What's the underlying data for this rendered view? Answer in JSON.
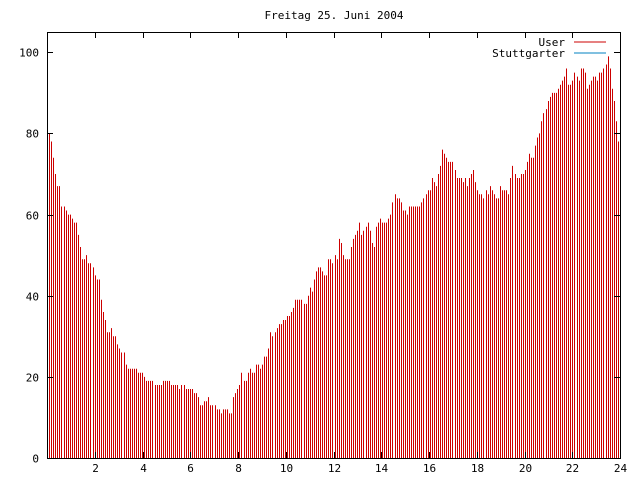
{
  "chart_data": {
    "type": "bar",
    "title": "Freitag 25. Juni 2004",
    "xlabel": "",
    "ylabel": "",
    "xlim": [
      0,
      24
    ],
    "ylim": [
      0,
      105
    ],
    "x_ticks": [
      2,
      4,
      6,
      8,
      10,
      12,
      14,
      16,
      18,
      20,
      22,
      24
    ],
    "y_ticks": [
      0,
      20,
      40,
      60,
      80,
      100
    ],
    "grid": false,
    "legend_position": "top-right",
    "series": [
      {
        "name": "User",
        "color": "#cc0000",
        "values": [
          82,
          80,
          78,
          74,
          70,
          67,
          67,
          62,
          62,
          61,
          60,
          60,
          59,
          58,
          58,
          55,
          52,
          49,
          49,
          50,
          48,
          48,
          47,
          45,
          44,
          44,
          39,
          36,
          34,
          31,
          31,
          32,
          30,
          30,
          28,
          27,
          26,
          26,
          23,
          22,
          22,
          22,
          22,
          22,
          21,
          21,
          21,
          20,
          19,
          19,
          19,
          19,
          18,
          18,
          18,
          18,
          19,
          19,
          19,
          19,
          18,
          18,
          18,
          18,
          17,
          18,
          18,
          17,
          17,
          17,
          17,
          16,
          16,
          15,
          13,
          13,
          14,
          14,
          15,
          13,
          13,
          13,
          12,
          12,
          11,
          12,
          12,
          12,
          11,
          11,
          15,
          16,
          17,
          18,
          21,
          19,
          19,
          21,
          22,
          21,
          21,
          23,
          23,
          22,
          23,
          25,
          25,
          27,
          31,
          30,
          31,
          32,
          33,
          33,
          34,
          34,
          35,
          35,
          36,
          37,
          39,
          39,
          39,
          39,
          38,
          38,
          40,
          42,
          41,
          44,
          46,
          47,
          47,
          46,
          45,
          45,
          49,
          49,
          48,
          50,
          49,
          54,
          53,
          50,
          49,
          49,
          49,
          52,
          54,
          55,
          56,
          58,
          55,
          56,
          57,
          58,
          56,
          53,
          52,
          57,
          58,
          59,
          58,
          58,
          58,
          59,
          60,
          63,
          65,
          64,
          64,
          63,
          61,
          61,
          60,
          62,
          62,
          62,
          62,
          62,
          62,
          63,
          64,
          65,
          66,
          66,
          69,
          68,
          67,
          70,
          72,
          76,
          75,
          74,
          73,
          73,
          73,
          71,
          69,
          69,
          69,
          68,
          69,
          67,
          69,
          70,
          71,
          68,
          66,
          65,
          65,
          64,
          66,
          65,
          67,
          66,
          65,
          64,
          64,
          67,
          66,
          66,
          66,
          65,
          69,
          72,
          70,
          69,
          69,
          70,
          70,
          71,
          73,
          75,
          74,
          74,
          77,
          79,
          80,
          83,
          85,
          86,
          88,
          89,
          90,
          90,
          90,
          91,
          92,
          93,
          94,
          96,
          92,
          92,
          93,
          95,
          94,
          93,
          96,
          96,
          95,
          91,
          92,
          93,
          94,
          94,
          93,
          95,
          95,
          96,
          97,
          99,
          96,
          91,
          88,
          83,
          78
        ]
      },
      {
        "name": "Stuttgarter",
        "color": "#0080c0",
        "values": []
      }
    ]
  }
}
